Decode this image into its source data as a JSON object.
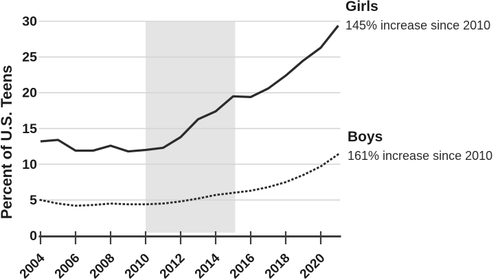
{
  "chart_data": {
    "type": "line",
    "title": "",
    "ylabel": "Percent of U.S. Teens",
    "xlabel": "",
    "x": [
      2004,
      2005,
      2006,
      2007,
      2008,
      2009,
      2010,
      2011,
      2012,
      2013,
      2014,
      2015,
      2016,
      2017,
      2018,
      2019,
      2020,
      2021
    ],
    "series": [
      {
        "name": "Girls",
        "line_style": "solid",
        "annotation": "145% increase since 2010",
        "values": [
          13.2,
          13.4,
          11.9,
          11.9,
          12.6,
          11.8,
          12.0,
          12.3,
          13.8,
          16.3,
          17.4,
          19.5,
          19.4,
          20.6,
          22.4,
          24.5,
          26.3,
          29.4
        ]
      },
      {
        "name": "Boys",
        "line_style": "dotted",
        "annotation": "161% increase since 2010",
        "values": [
          5.0,
          4.5,
          4.2,
          4.3,
          4.5,
          4.4,
          4.4,
          4.5,
          4.8,
          5.2,
          5.7,
          6.0,
          6.3,
          6.8,
          7.5,
          8.5,
          9.7,
          11.4
        ]
      }
    ],
    "ylim": [
      0,
      30
    ],
    "yticks": [
      0,
      5,
      10,
      15,
      20,
      25,
      30
    ],
    "xticks": [
      2004,
      2006,
      2008,
      2010,
      2012,
      2014,
      2016,
      2018,
      2020
    ],
    "shaded_region": {
      "from": 2010,
      "to": 2015
    },
    "grid": "horizontal-only",
    "legend_position": "right-margin-annotations",
    "colors": {
      "line": "#2b2b2b",
      "grid": "#d5d5d5",
      "axis": "#3d3d3d",
      "shade": "#e4e4e4",
      "text": "#1a1a1a"
    }
  }
}
